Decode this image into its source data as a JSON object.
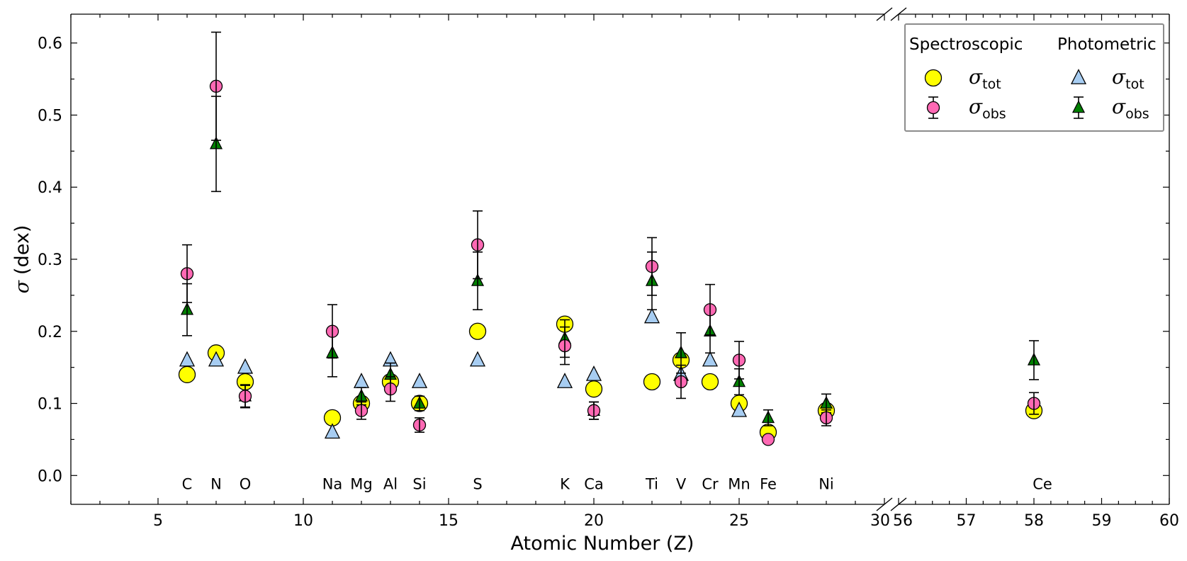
{
  "chart_data": {
    "type": "scatter",
    "xlabel": "Atomic Number (Z)",
    "ylabel_symbol": "σ",
    "ylabel_unit": "(dex)",
    "ylim": [
      -0.04,
      0.64
    ],
    "x_segments": [
      {
        "xlim": [
          2,
          30
        ],
        "major_ticks": [
          5,
          10,
          15,
          20,
          25,
          30
        ],
        "minor_step": 1
      },
      {
        "xlim": [
          56,
          60
        ],
        "major_ticks": [
          56,
          57,
          58,
          59,
          60
        ],
        "minor_step": 0.25
      }
    ],
    "y_ticks": [
      "0.0",
      "0.1",
      "0.2",
      "0.3",
      "0.4",
      "0.5",
      "0.6"
    ],
    "elements": [
      {
        "label": "C",
        "z": 6
      },
      {
        "label": "N",
        "z": 7
      },
      {
        "label": "O",
        "z": 8
      },
      {
        "label": "Na",
        "z": 11
      },
      {
        "label": "Mg",
        "z": 12
      },
      {
        "label": "Al",
        "z": 13
      },
      {
        "label": "Si",
        "z": 14
      },
      {
        "label": "S",
        "z": 16
      },
      {
        "label": "K",
        "z": 19
      },
      {
        "label": "Ca",
        "z": 20
      },
      {
        "label": "Ti",
        "z": 22
      },
      {
        "label": "V",
        "z": 23
      },
      {
        "label": "Cr",
        "z": 24
      },
      {
        "label": "Mn",
        "z": 25
      },
      {
        "label": "Fe",
        "z": 26
      },
      {
        "label": "Ni",
        "z": 28
      },
      {
        "label": "Ce",
        "z": 58
      }
    ],
    "series": [
      {
        "group": "Spectroscopic",
        "symbol": "σ",
        "subscript": "tot",
        "marker": "circle",
        "color": "#ffff00",
        "points": [
          {
            "x": 6,
            "y": 0.14
          },
          {
            "x": 7,
            "y": 0.17
          },
          {
            "x": 8,
            "y": 0.13
          },
          {
            "x": 11,
            "y": 0.08
          },
          {
            "x": 12,
            "y": 0.1
          },
          {
            "x": 13,
            "y": 0.13
          },
          {
            "x": 14,
            "y": 0.1
          },
          {
            "x": 16,
            "y": 0.2
          },
          {
            "x": 19,
            "y": 0.21
          },
          {
            "x": 20,
            "y": 0.12
          },
          {
            "x": 22,
            "y": 0.13
          },
          {
            "x": 23,
            "y": 0.16
          },
          {
            "x": 24,
            "y": 0.13
          },
          {
            "x": 25,
            "y": 0.1
          },
          {
            "x": 26,
            "y": 0.06
          },
          {
            "x": 28,
            "y": 0.09
          },
          {
            "x": 58,
            "y": 0.09
          }
        ]
      },
      {
        "group": "Photometric",
        "symbol": "σ",
        "subscript": "tot",
        "marker": "triangle",
        "color": "#a7cdf2",
        "points": [
          {
            "x": 6,
            "y": 0.16
          },
          {
            "x": 7,
            "y": 0.16
          },
          {
            "x": 8,
            "y": 0.15
          },
          {
            "x": 11,
            "y": 0.06
          },
          {
            "x": 12,
            "y": 0.13
          },
          {
            "x": 13,
            "y": 0.16
          },
          {
            "x": 14,
            "y": 0.13
          },
          {
            "x": 16,
            "y": 0.16
          },
          {
            "x": 19,
            "y": 0.13
          },
          {
            "x": 20,
            "y": 0.14
          },
          {
            "x": 22,
            "y": 0.22
          },
          {
            "x": 23,
            "y": 0.14
          },
          {
            "x": 24,
            "y": 0.16
          },
          {
            "x": 25,
            "y": 0.09
          }
        ]
      },
      {
        "group": "Photometric",
        "symbol": "σ",
        "subscript": "obs",
        "marker": "triangle",
        "color": "#008000",
        "points": [
          {
            "x": 6,
            "y": 0.23,
            "err": 0.036
          },
          {
            "x": 7,
            "y": 0.46,
            "err": 0.066
          },
          {
            "x": 8,
            "y": 0.11,
            "err": 0.016
          },
          {
            "x": 11,
            "y": 0.17,
            "err": 0.033
          },
          {
            "x": 12,
            "y": 0.11,
            "err": 0.012
          },
          {
            "x": 13,
            "y": 0.14,
            "err": 0.016
          },
          {
            "x": 14,
            "y": 0.1,
            "err": 0.01
          },
          {
            "x": 16,
            "y": 0.27,
            "err": 0.04
          },
          {
            "x": 19,
            "y": 0.19,
            "err": 0.026
          },
          {
            "x": 20,
            "y": 0.09,
            "err": 0.012
          },
          {
            "x": 22,
            "y": 0.27,
            "err": 0.04
          },
          {
            "x": 23,
            "y": 0.17,
            "err": 0.028
          },
          {
            "x": 24,
            "y": 0.2,
            "err": 0.03
          },
          {
            "x": 25,
            "y": 0.13,
            "err": 0.018
          },
          {
            "x": 26,
            "y": 0.08,
            "err": 0.011
          },
          {
            "x": 28,
            "y": 0.1,
            "err": 0.013
          },
          {
            "x": 58,
            "y": 0.16,
            "err": 0.027
          }
        ]
      },
      {
        "group": "Spectroscopic",
        "symbol": "σ",
        "subscript": "obs",
        "marker": "circle",
        "color": "#ff69b4",
        "points": [
          {
            "x": 6,
            "y": 0.28,
            "err": 0.04
          },
          {
            "x": 7,
            "y": 0.54,
            "err": 0.075
          },
          {
            "x": 8,
            "y": 0.11,
            "err": 0.015
          },
          {
            "x": 11,
            "y": 0.2,
            "err": 0.037
          },
          {
            "x": 12,
            "y": 0.09,
            "err": 0.012
          },
          {
            "x": 13,
            "y": 0.12,
            "err": 0.017
          },
          {
            "x": 14,
            "y": 0.07,
            "err": 0.01
          },
          {
            "x": 16,
            "y": 0.32,
            "err": 0.047
          },
          {
            "x": 19,
            "y": 0.18,
            "err": 0.026
          },
          {
            "x": 20,
            "y": 0.09,
            "err": 0.012
          },
          {
            "x": 22,
            "y": 0.29,
            "err": 0.04
          },
          {
            "x": 23,
            "y": 0.13,
            "err": 0.023
          },
          {
            "x": 24,
            "y": 0.23,
            "err": 0.035
          },
          {
            "x": 25,
            "y": 0.16,
            "err": 0.026
          },
          {
            "x": 26,
            "y": 0.05,
            "err": 0.0
          },
          {
            "x": 28,
            "y": 0.08,
            "err": 0.011
          },
          {
            "x": 58,
            "y": 0.1,
            "err": 0.015
          }
        ]
      }
    ],
    "legend": {
      "placement": "top-right",
      "group_titles": [
        "Spectroscopic",
        "Photometric"
      ]
    }
  }
}
